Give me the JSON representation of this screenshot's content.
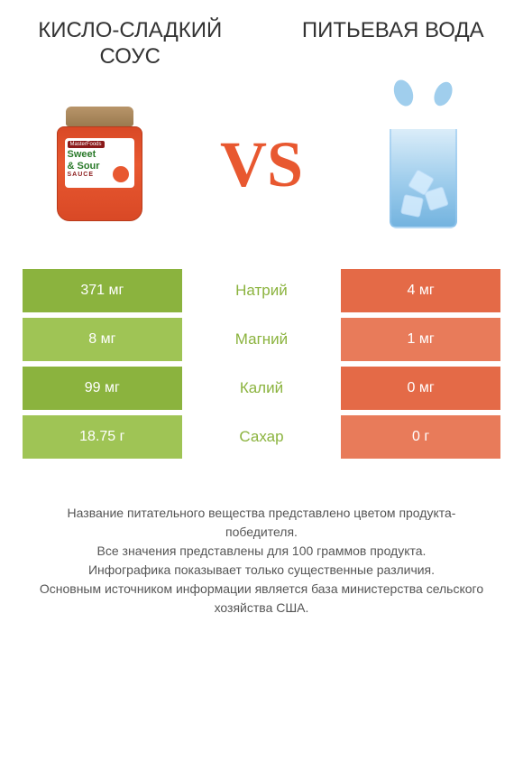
{
  "product_left": {
    "title": "КИСЛО-СЛАДКИЙ СОУС",
    "jar_brand": "MasterFoods",
    "jar_title1": "Sweet",
    "jar_title2": "& Sour",
    "jar_sub": "SAUCE"
  },
  "product_right": {
    "title": "ПИТЬЕВАЯ ВОДА"
  },
  "vs_text": "VS",
  "colors": {
    "green_dark": "#8bb33e",
    "green_light": "#9fc455",
    "orange_dark": "#e46a47",
    "orange_light": "#e87b5a",
    "label_green": "#8bb33e",
    "label_orange": "#e46a47"
  },
  "rows": [
    {
      "left": "371 мг",
      "label": "Натрий",
      "right": "4 мг",
      "winner": "left"
    },
    {
      "left": "8 мг",
      "label": "Магний",
      "right": "1 мг",
      "winner": "left"
    },
    {
      "left": "99 мг",
      "label": "Калий",
      "right": "0 мг",
      "winner": "left"
    },
    {
      "left": "18.75 г",
      "label": "Сахар",
      "right": "0 г",
      "winner": "left"
    }
  ],
  "footer_lines": [
    "Название питательного вещества представлено цветом продукта-победителя.",
    "Все значения представлены для 100 граммов продукта.",
    "Инфографика показывает только существенные различия.",
    "Основным источником информации является база министерства сельского хозяйства США."
  ]
}
